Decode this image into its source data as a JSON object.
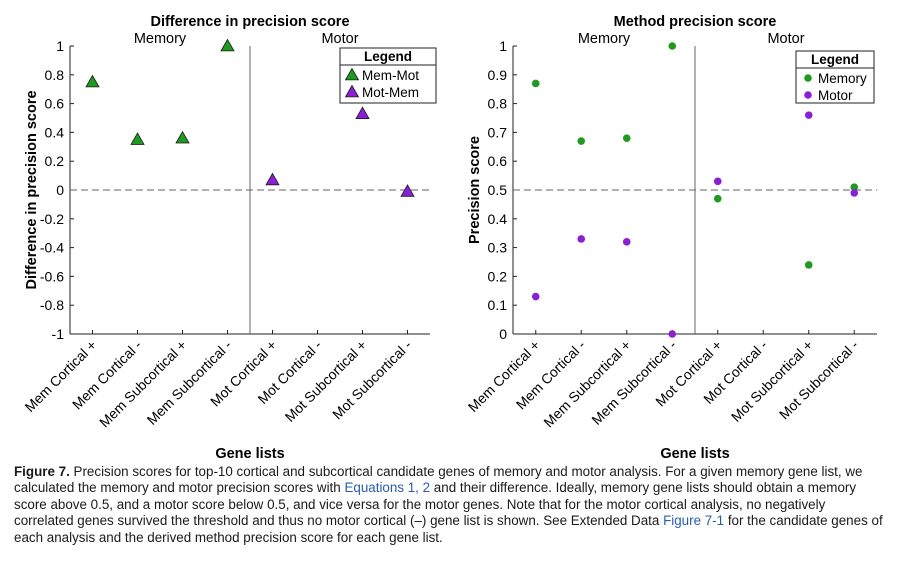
{
  "chart_data": [
    {
      "type": "scatter",
      "title": "Difference in precision score",
      "xlabel": "Gene lists",
      "ylabel": "Difference in precision score",
      "ylim": [
        -1,
        1
      ],
      "yticks": [
        1,
        0.8,
        0.6,
        0.4,
        0.2,
        0,
        -0.2,
        -0.4,
        -0.6,
        -0.8,
        -1
      ],
      "ytick_labels": [
        "1",
        "0.8",
        "0.6",
        "0.4",
        "0.2",
        "0",
        "-0.2",
        "-0.4",
        "-0.6",
        "-0.8",
        "-1"
      ],
      "categories": [
        "Mem Cortical +",
        "Mem Cortical -",
        "Mem Subcortical +",
        "Mem Subcortical -",
        "Mot Cortical +",
        "Mot Cortical -",
        "Mot Subcortical +",
        "Mot Subcortical -"
      ],
      "sections": [
        "Memory",
        "Motor"
      ],
      "reference_line": 0,
      "legend_title": "Legend",
      "legend_position": "top-right",
      "series": [
        {
          "name": "Mem-Mot",
          "color": "#1f9a1f",
          "marker": "triangle",
          "values": [
            0.75,
            0.35,
            0.36,
            1.0,
            null,
            null,
            null,
            null
          ]
        },
        {
          "name": "Mot-Mem",
          "color": "#8b1fd6",
          "marker": "triangle",
          "values": [
            null,
            null,
            null,
            null,
            0.07,
            null,
            0.53,
            -0.01
          ]
        }
      ]
    },
    {
      "type": "scatter",
      "title": "Method precision score",
      "xlabel": "Gene lists",
      "ylabel": "Precision score",
      "ylim": [
        0,
        1
      ],
      "yticks": [
        1,
        0.9,
        0.8,
        0.7,
        0.6,
        0.5,
        0.4,
        0.3,
        0.2,
        0.1,
        0
      ],
      "ytick_labels": [
        "1",
        "0.9",
        "0.8",
        "0.7",
        "0.6",
        "0.5",
        "0.4",
        "0.3",
        "0.2",
        "0.1",
        "0"
      ],
      "categories": [
        "Mem Cortical +",
        "Mem Cortical -",
        "Mem Subcortical +",
        "Mem Subcortical -",
        "Mot Cortical +",
        "Mot Cortical -",
        "Mot Subcortical +",
        "Mot Subcortical -"
      ],
      "sections": [
        "Memory",
        "Motor"
      ],
      "reference_line": 0.5,
      "legend_title": "Legend",
      "legend_position": "top-right",
      "series": [
        {
          "name": "Memory",
          "color": "#1f9a1f",
          "marker": "circle",
          "values": [
            0.87,
            0.67,
            0.68,
            1.0,
            0.47,
            null,
            0.24,
            0.51
          ]
        },
        {
          "name": "Motor",
          "color": "#8b1fd6",
          "marker": "circle",
          "values": [
            0.13,
            0.33,
            0.32,
            0.0,
            0.53,
            null,
            0.76,
            0.49
          ]
        }
      ]
    }
  ],
  "caption": {
    "label": "Figure 7.",
    "part1": " Precision scores for top-10 cortical and subcortical candidate genes of memory and motor analysis. For a given memory gene list, we calculated the memory and motor precision scores with ",
    "eq_link": "Equations 1, 2",
    "part2": " and their difference. Ideally, memory gene lists should obtain a memory score above 0.5, and a motor score below 0.5, and vice versa for the motor genes. Note that for the motor cortical analysis, no negatively correlated genes survived the threshold and thus no motor cortical (–) gene list is shown. See Extended Data ",
    "fig_link": "Figure 7-1",
    "part3": " for the candidate genes of each analysis and the derived method precision score for each gene list."
  }
}
